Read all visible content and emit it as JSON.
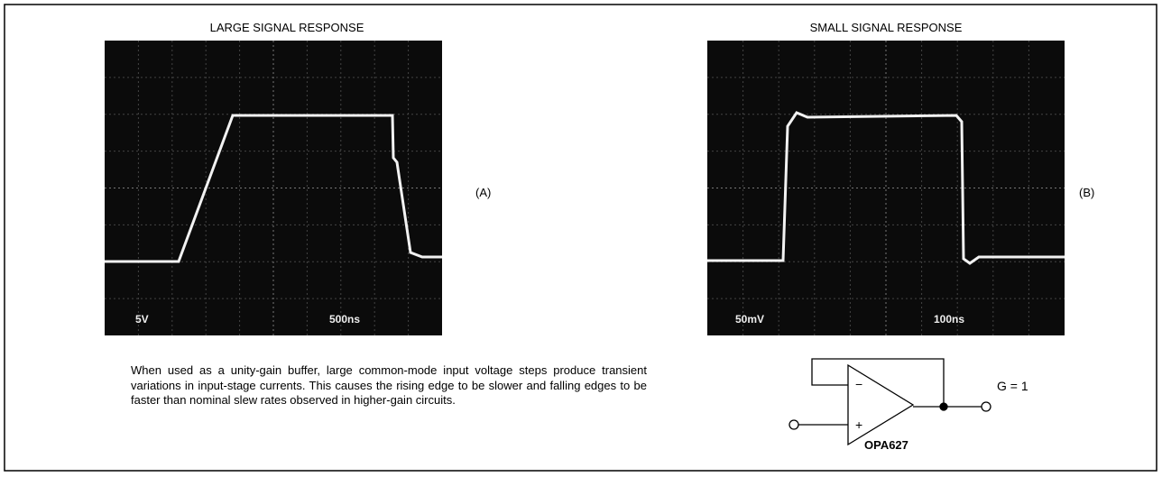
{
  "figure_a": {
    "title": "LARGE SIGNAL RESPONSE",
    "scale_volts": "5V",
    "scale_time": "500ns",
    "label": "(A)"
  },
  "figure_b": {
    "title": "SMALL SIGNAL RESPONSE",
    "scale_volts": "50mV",
    "scale_time": "100ns",
    "label": "(B)"
  },
  "caption": "When used as a unity-gain buffer, large common-mode input voltage steps produce transient variations in input-stage currents. This causes the rising edge to be slower and falling edges to be faster than nominal slew rates observed in higher-gain circuits.",
  "circuit": {
    "inverting": "−",
    "noninverting": "+",
    "gain": "G = 1",
    "part": "OPA627"
  }
}
